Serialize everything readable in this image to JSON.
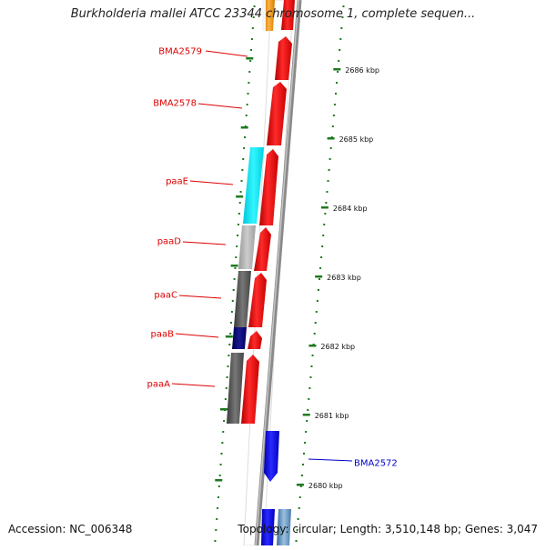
{
  "title": "Burkholderia mallei ATCC 23344 chromosome 1, complete sequen...",
  "footer": {
    "accession": "Accession: NC_006348",
    "summary": "Topology: circular; Length: 3,510,148 bp; Genes: 3,047"
  },
  "colors": {
    "forward_gene": "#ff1a1a",
    "reverse_gene": "#1a1aff",
    "feature_label_red": "#dd0000",
    "feature_label_blue": "#0000cc",
    "tick": "#1e7a1e"
  },
  "scale": {
    "ticks": [
      {
        "label": "2686 kbp"
      },
      {
        "label": "2685 kbp"
      },
      {
        "label": "2684 kbp"
      },
      {
        "label": "2683 kbp"
      },
      {
        "label": "2682 kbp"
      },
      {
        "label": "2681 kbp"
      },
      {
        "label": "2680 kbp"
      }
    ]
  },
  "features": [
    {
      "name": "BMA2579",
      "color": "red"
    },
    {
      "name": "BMA2578",
      "color": "red"
    },
    {
      "name": "paaE",
      "color": "red"
    },
    {
      "name": "paaD",
      "color": "red"
    },
    {
      "name": "paaC",
      "color": "red"
    },
    {
      "name": "paaB",
      "color": "red"
    },
    {
      "name": "paaA",
      "color": "red"
    },
    {
      "name": "BMA2572",
      "color": "blue"
    }
  ]
}
